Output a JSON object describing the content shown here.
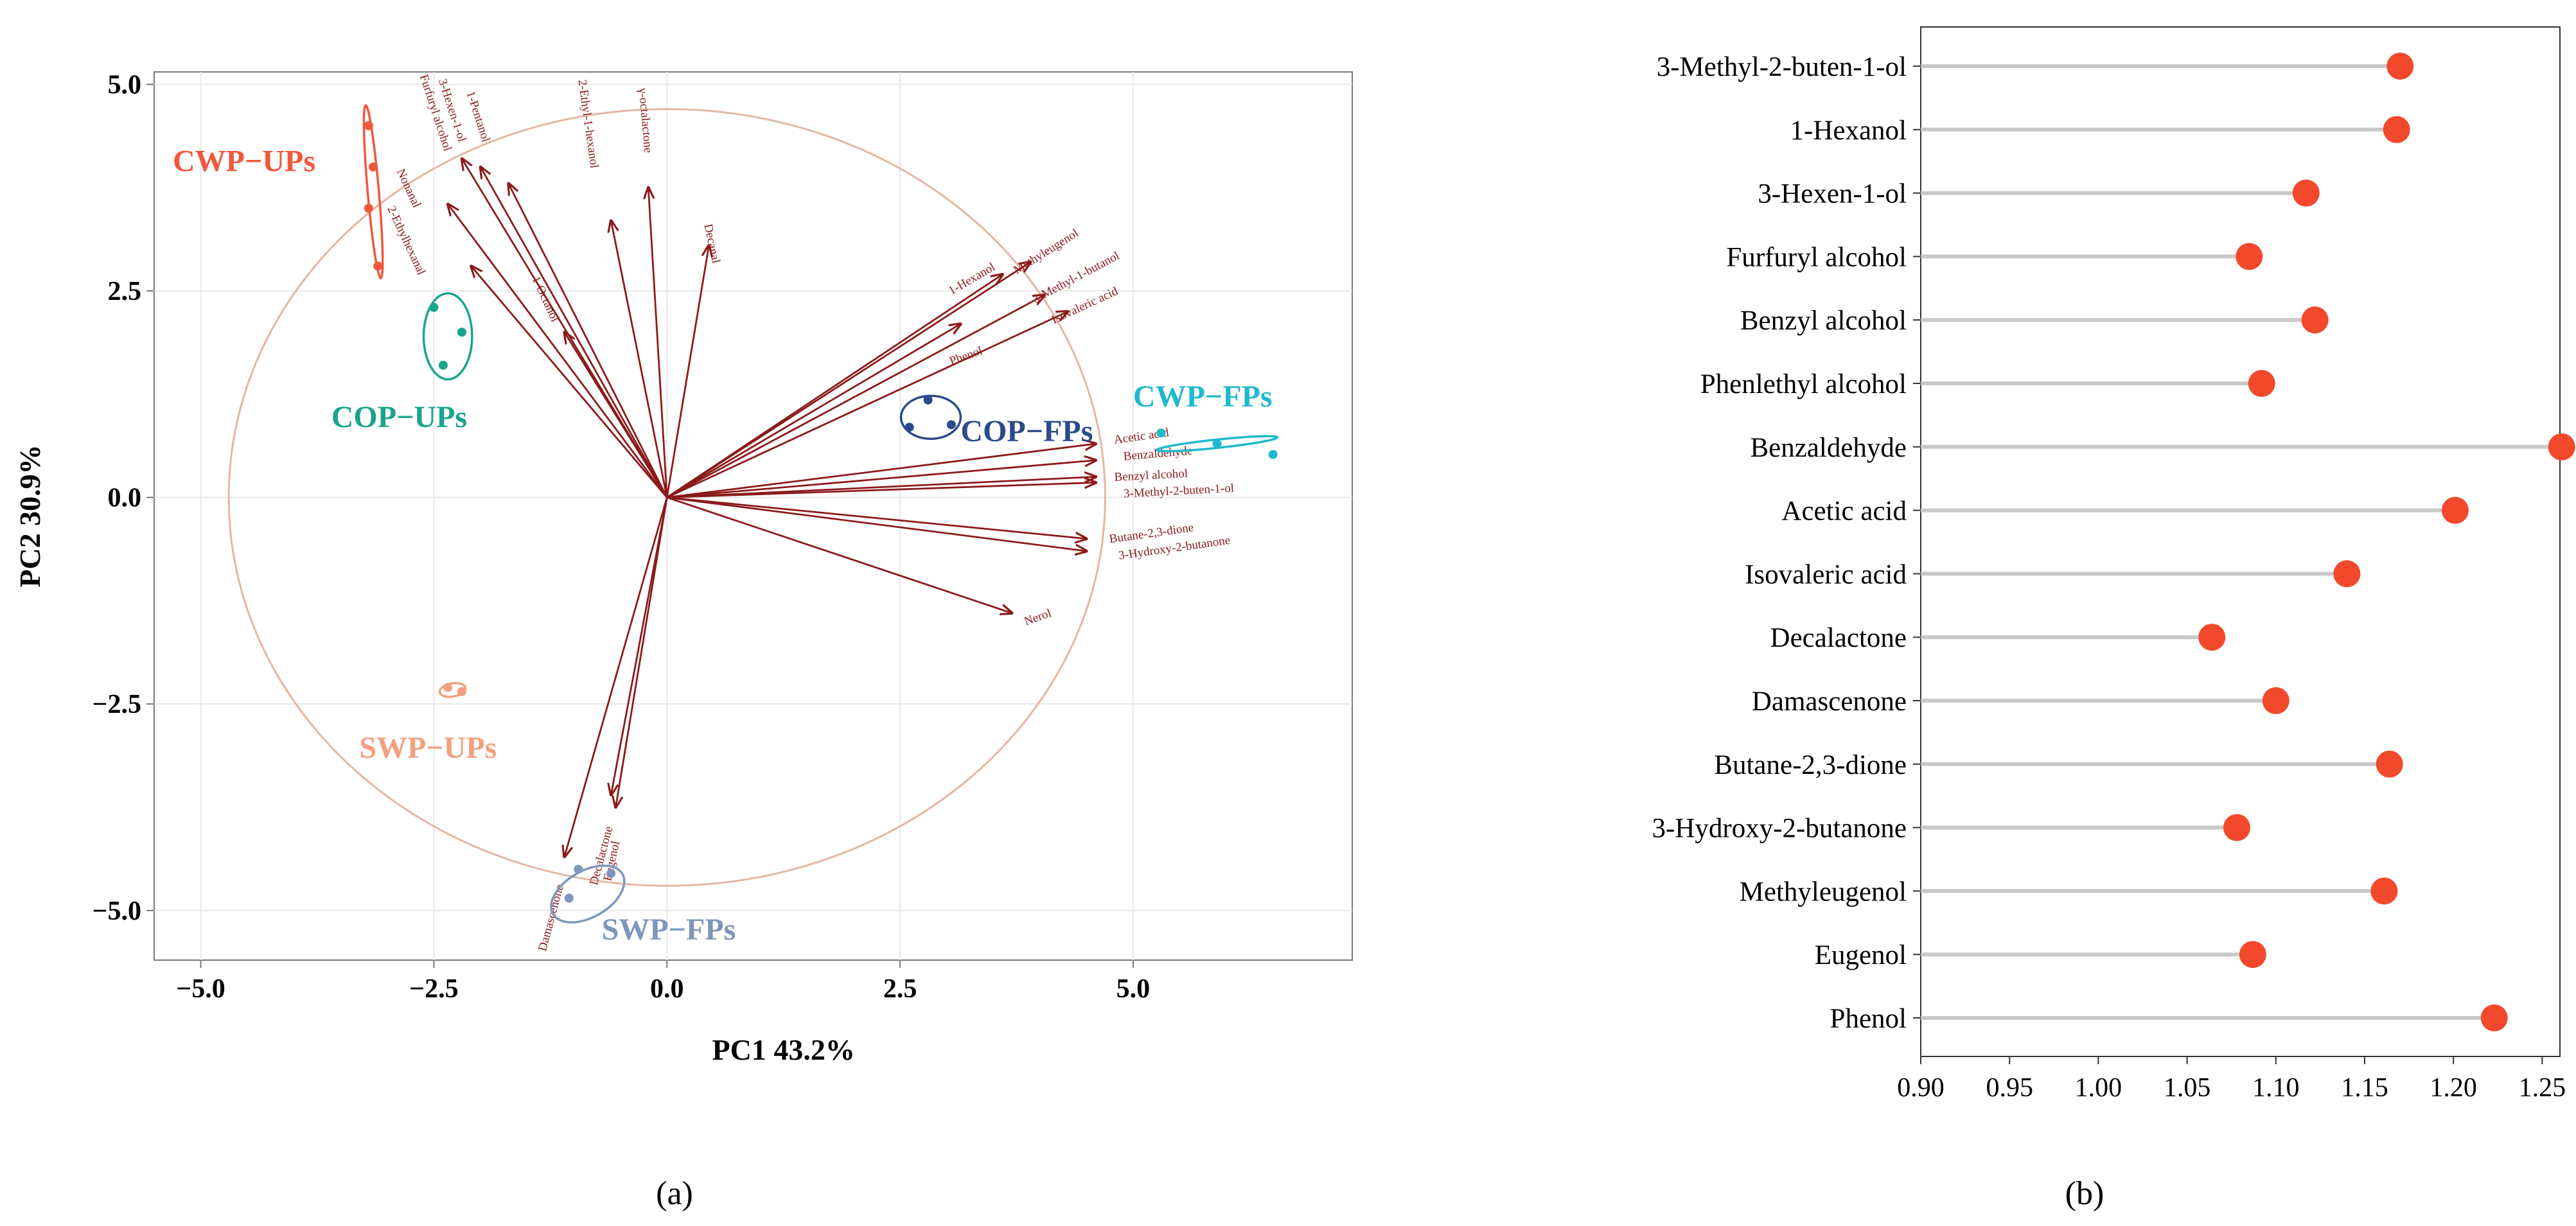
{
  "panels": {
    "a_label": "(a)",
    "b_label": "(b)"
  },
  "colors": {
    "arrow": "#8b1a1a",
    "ellipse_big": "#e3b7a3",
    "cwp_ups": "#f1573c",
    "cop_ups": "#1aa58a",
    "cop_fps": "#2b4a8b",
    "cwp_fps": "#1fb9cf",
    "swp_ups": "#f2a07e",
    "swp_fps": "#7f95bd",
    "dot": "#f2482b",
    "stem": "#c8c8c8",
    "grid": "#e8e8e8",
    "axis": "#777777"
  },
  "chart_data": [
    {
      "type": "scatter",
      "subtype": "pca-biplot",
      "title": "",
      "xlabel": "PC1 43.2%",
      "ylabel": "PC2 30.9%",
      "xlim": [
        -5.5,
        7.35
      ],
      "ylim": [
        -5.6,
        5.15
      ],
      "xticks": [
        -5.0,
        -2.5,
        0.0,
        2.5,
        5.0
      ],
      "yticks": [
        -5.0,
        -2.5,
        0.0,
        2.5,
        5.0
      ],
      "xtick_labels": [
        "−5.0",
        "−2.5",
        "0.0",
        "2.5",
        "5.0"
      ],
      "ytick_labels": [
        "−5.0",
        "−2.5",
        "0.0",
        "2.5",
        "5.0"
      ],
      "correlation_circle_radius": 4.7,
      "groups": [
        {
          "name": "CWP−UPs",
          "color_key": "cwp_ups",
          "points": [
            [
              -3.2,
              4.5
            ],
            [
              -3.15,
              4.0
            ],
            [
              -3.2,
              3.5
            ],
            [
              -3.1,
              2.8
            ]
          ],
          "ellipse": {
            "cx": -3.15,
            "cy": 3.7,
            "rx": 0.06,
            "ry": 1.05,
            "rot": -5
          },
          "label_pos": [
            -5.3,
            3.95
          ],
          "label_anchor": "start"
        },
        {
          "name": "COP−UPs",
          "color_key": "cop_ups",
          "points": [
            [
              -2.5,
              2.3
            ],
            [
              -2.2,
              2.0
            ],
            [
              -2.4,
              1.6
            ]
          ],
          "ellipse": {
            "cx": -2.35,
            "cy": 1.95,
            "rx": 0.26,
            "ry": 0.52,
            "rot": 0
          },
          "label_pos": [
            -3.6,
            0.85
          ],
          "label_anchor": "start"
        },
        {
          "name": "COP−FPs",
          "color_key": "cop_fps",
          "points": [
            [
              2.6,
              0.85
            ],
            [
              2.8,
              1.18
            ],
            [
              3.05,
              0.88
            ]
          ],
          "ellipse": {
            "cx": 2.83,
            "cy": 0.97,
            "rx": 0.32,
            "ry": 0.26,
            "rot": 0
          },
          "label_pos": [
            3.15,
            0.68
          ],
          "label_anchor": "start"
        },
        {
          "name": "CWP−FPs",
          "color_key": "cwp_fps",
          "points": [
            [
              5.3,
              0.78
            ],
            [
              5.9,
              0.65
            ],
            [
              6.5,
              0.52
            ]
          ],
          "ellipse": {
            "cx": 5.9,
            "cy": 0.65,
            "rx": 0.65,
            "ry": 0.05,
            "rot": -6
          },
          "label_pos": [
            5.0,
            1.1
          ],
          "label_anchor": "start"
        },
        {
          "name": "SWP−UPs",
          "color_key": "swp_ups",
          "points": [
            [
              -2.35,
              -2.3
            ],
            [
              -2.2,
              -2.35
            ]
          ],
          "ellipse": {
            "cx": -2.3,
            "cy": -2.33,
            "rx": 0.14,
            "ry": 0.08,
            "rot": -10
          },
          "label_pos": [
            -3.3,
            -3.15
          ],
          "label_anchor": "start"
        },
        {
          "name": "SWP−FPs",
          "color_key": "swp_fps",
          "points": [
            [
              -1.05,
              -4.85
            ],
            [
              -0.6,
              -4.55
            ],
            [
              -0.95,
              -4.5
            ]
          ],
          "ellipse": {
            "cx": -0.85,
            "cy": -4.8,
            "rx": 0.43,
            "ry": 0.28,
            "rot": -30
          },
          "label_pos": [
            -0.7,
            -5.35
          ],
          "label_anchor": "start"
        }
      ],
      "loadings": [
        {
          "name": "Furfuryl alcohol",
          "x": -2.2,
          "y": 4.1,
          "label_x": -2.65,
          "label_y": 5.1,
          "angle": 72,
          "anchor": "start"
        },
        {
          "name": "3-Hexen-1-ol",
          "x": -2.0,
          "y": 4.0,
          "label_x": -2.45,
          "label_y": 5.05,
          "angle": 72,
          "anchor": "start"
        },
        {
          "name": "1-Pentanol",
          "x": -1.7,
          "y": 3.8,
          "label_x": -2.15,
          "label_y": 4.9,
          "angle": 72,
          "anchor": "start"
        },
        {
          "name": "Nonanal",
          "x": -2.35,
          "y": 3.55,
          "label_x": -2.9,
          "label_y": 3.95,
          "angle": 65,
          "anchor": "start"
        },
        {
          "name": "2-Ethylhexanal",
          "x": -2.1,
          "y": 2.8,
          "label_x": -3.0,
          "label_y": 3.5,
          "angle": 65,
          "anchor": "start"
        },
        {
          "name": "1-Octanol",
          "x": -1.1,
          "y": 2.0,
          "label_x": -1.45,
          "label_y": 2.65,
          "angle": 65,
          "anchor": "start"
        },
        {
          "name": "2-Ethyl-1-hexanol",
          "x": -0.6,
          "y": 3.35,
          "label_x": -0.95,
          "label_y": 5.05,
          "angle": 82,
          "anchor": "start"
        },
        {
          "name": "γ-octalactone",
          "x": -0.2,
          "y": 3.75,
          "label_x": -0.3,
          "label_y": 4.95,
          "angle": 85,
          "anchor": "start"
        },
        {
          "name": "Decanal",
          "x": 0.45,
          "y": 3.05,
          "label_x": 0.4,
          "label_y": 3.3,
          "angle": 78,
          "anchor": "start"
        },
        {
          "name": "1-Hexanol",
          "x": 3.6,
          "y": 2.7,
          "label_x": 3.05,
          "label_y": 2.45,
          "angle": -30,
          "anchor": "start"
        },
        {
          "name": "Methyleugenol",
          "x": 3.9,
          "y": 2.85,
          "label_x": 3.75,
          "label_y": 2.7,
          "angle": -32,
          "anchor": "start"
        },
        {
          "name": "3-Methyl-1-butanol",
          "x": 4.05,
          "y": 2.45,
          "label_x": 3.95,
          "label_y": 2.35,
          "angle": -28,
          "anchor": "start"
        },
        {
          "name": "Isovaleric acid",
          "x": 4.3,
          "y": 2.25,
          "label_x": 4.15,
          "label_y": 2.1,
          "angle": -25,
          "anchor": "start"
        },
        {
          "name": "Phenol",
          "x": 3.15,
          "y": 2.1,
          "label_x": 3.05,
          "label_y": 1.6,
          "angle": -20,
          "anchor": "start"
        },
        {
          "name": "Acetic acid",
          "x": 4.6,
          "y": 0.65,
          "label_x": 4.8,
          "label_y": 0.65,
          "angle": -8,
          "anchor": "start"
        },
        {
          "name": "Benzaldehyde",
          "x": 4.6,
          "y": 0.45,
          "label_x": 4.9,
          "label_y": 0.45,
          "angle": -5,
          "anchor": "start"
        },
        {
          "name": "Benzyl alcohol",
          "x": 4.6,
          "y": 0.25,
          "label_x": 4.8,
          "label_y": 0.2,
          "angle": -3,
          "anchor": "start"
        },
        {
          "name": "3-Methyl-2-buten-1-ol",
          "x": 4.6,
          "y": 0.18,
          "label_x": 4.9,
          "label_y": 0.0,
          "angle": -3,
          "anchor": "start"
        },
        {
          "name": "Butane-2,3-dione",
          "x": 4.5,
          "y": -0.5,
          "label_x": 4.75,
          "label_y": -0.55,
          "angle": -8,
          "anchor": "start"
        },
        {
          "name": "3-Hydroxy-2-butanone",
          "x": 4.5,
          "y": -0.65,
          "label_x": 4.85,
          "label_y": -0.75,
          "angle": -8,
          "anchor": "start"
        },
        {
          "name": "Nerol",
          "x": 3.7,
          "y": -1.4,
          "label_x": 3.85,
          "label_y": -1.55,
          "angle": -20,
          "anchor": "start"
        },
        {
          "name": "Damascenone",
          "x": -1.1,
          "y": -4.35,
          "label_x": -1.3,
          "label_y": -5.5,
          "angle": -75,
          "anchor": "start"
        },
        {
          "name": "Decalactone",
          "x": -0.6,
          "y": -3.6,
          "label_x": -0.75,
          "label_y": -4.7,
          "angle": -75,
          "anchor": "start"
        },
        {
          "name": "Eugenol",
          "x": -0.55,
          "y": -3.75,
          "label_x": -0.6,
          "label_y": -4.65,
          "angle": -78,
          "anchor": "start"
        }
      ]
    },
    {
      "type": "lollipop",
      "orientation": "horizontal",
      "title": "",
      "xlabel": "",
      "ylabel": "",
      "xlim": [
        0.9,
        1.26
      ],
      "xticks": [
        0.9,
        0.95,
        1.0,
        1.05,
        1.1,
        1.15,
        1.2,
        1.25
      ],
      "xtick_labels": [
        "0.90",
        "0.95",
        "1.00",
        "1.05",
        "1.10",
        "1.15",
        "1.20",
        "1.25"
      ],
      "categories": [
        "3-Methyl-2-buten-1-ol",
        "1-Hexanol",
        "3-Hexen-1-ol",
        "Furfuryl alcohol",
        "Benzyl alcohol",
        "Phenlethyl alcohol",
        "Benzaldehyde",
        "Acetic acid",
        "Isovaleric acid",
        "Decalactone",
        "Damascenone",
        "Butane-2,3-dione",
        "3-Hydroxy-2-butanone",
        "Methyleugenol",
        "Eugenol",
        "Phenol"
      ],
      "values": [
        1.17,
        1.168,
        1.117,
        1.085,
        1.122,
        1.092,
        1.261,
        1.201,
        1.14,
        1.064,
        1.1,
        1.164,
        1.078,
        1.161,
        1.087,
        1.223
      ]
    }
  ]
}
